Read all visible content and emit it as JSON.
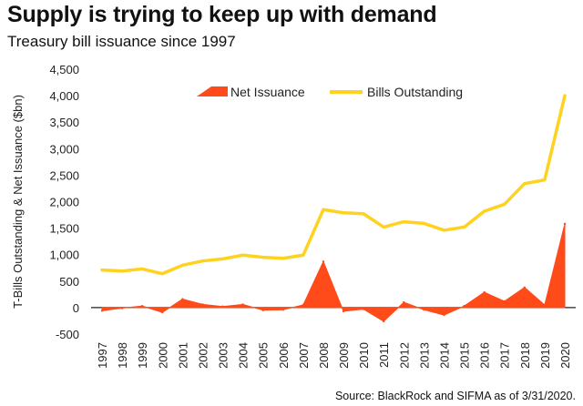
{
  "title": "Supply is trying to keep up with demand",
  "subtitle": "Treasury bill issuance since 1997",
  "source": "Source: BlackRock and SIFMA as of 3/31/2020.",
  "chart_data": {
    "type": "line",
    "x": [
      "1997",
      "1998",
      "1999",
      "2000",
      "2001",
      "2002",
      "2003",
      "2004",
      "2005",
      "2006",
      "2007",
      "2008",
      "2009",
      "2010",
      "2011",
      "2012",
      "2013",
      "2014",
      "2015",
      "2016",
      "2017",
      "2018",
      "2019",
      "2020"
    ],
    "series": [
      {
        "name": "Net Issuance",
        "kind": "area",
        "color": "#ff4a1a",
        "values": [
          -60,
          -10,
          30,
          -90,
          160,
          60,
          20,
          60,
          -50,
          -40,
          50,
          870,
          -70,
          -30,
          -260,
          100,
          -40,
          -140,
          30,
          290,
          120,
          380,
          50,
          1580
        ]
      },
      {
        "name": "Bills Outstanding",
        "kind": "line",
        "color": "#ffd21f",
        "values": [
          710,
          690,
          730,
          640,
          800,
          880,
          920,
          990,
          950,
          930,
          990,
          1850,
          1790,
          1770,
          1520,
          1620,
          1590,
          1460,
          1520,
          1820,
          1950,
          2340,
          2410,
          4000
        ]
      }
    ],
    "ylabel": "T-Bills Outstanding & Net Issuance ($bn)",
    "ylim": [
      -500,
      4500
    ],
    "yticks": [
      -500,
      0,
      500,
      1000,
      1500,
      2000,
      2500,
      3000,
      3500,
      4000,
      4500
    ],
    "ytick_labels": [
      "-500",
      "0",
      "500",
      "1,000",
      "1,500",
      "2,000",
      "2,500",
      "3,000",
      "3,500",
      "4,000",
      "4,500"
    ],
    "grid": false,
    "legend": "top-center"
  }
}
